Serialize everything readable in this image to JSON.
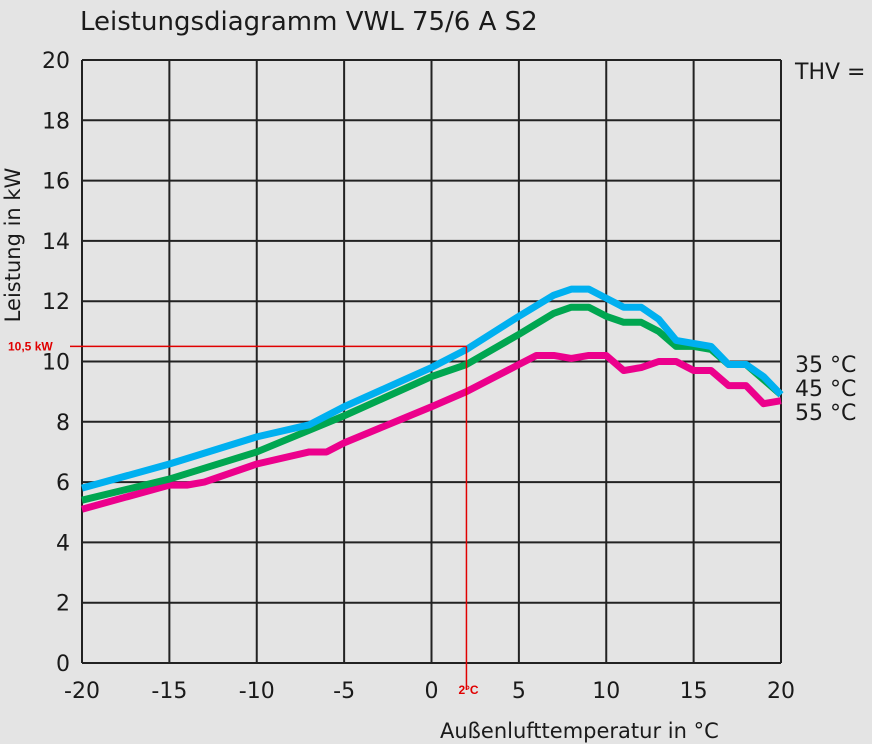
{
  "chart_data": {
    "type": "line",
    "title": "Leistungsdiagramm VWL 75/6 A S2",
    "xlabel": "Außenlufttemperatur  in °C",
    "ylabel": "Leistung in kW",
    "xlim": [
      -20,
      20
    ],
    "ylim": [
      0,
      20
    ],
    "xticks": [
      -20,
      -15,
      -10,
      -5,
      0,
      5,
      10,
      15,
      20
    ],
    "yticks": [
      0,
      2,
      4,
      6,
      8,
      10,
      12,
      14,
      16,
      18,
      20
    ],
    "grid": true,
    "legend_title": "THV =",
    "legend_placement": "right",
    "series": [
      {
        "name": "35 °C",
        "color": "#00b0f0",
        "x": [
          -20,
          -15,
          -10,
          -7,
          -5,
          0,
          2,
          5,
          7,
          8,
          9,
          10,
          11,
          12,
          13,
          14,
          15,
          16,
          17,
          18,
          19,
          20
        ],
        "y": [
          5.8,
          6.6,
          7.5,
          7.9,
          8.5,
          9.8,
          10.4,
          11.5,
          12.2,
          12.4,
          12.4,
          12.1,
          11.8,
          11.8,
          11.4,
          10.7,
          10.6,
          10.5,
          9.9,
          9.9,
          9.5,
          8.9
        ]
      },
      {
        "name": "45 °C",
        "color": "#00a650",
        "x": [
          -20,
          -15,
          -10,
          -5,
          0,
          2,
          5,
          7,
          8,
          9,
          10,
          11,
          12,
          13,
          14,
          15,
          16,
          17,
          18,
          19,
          20
        ],
        "y": [
          5.4,
          6.1,
          7.0,
          8.2,
          9.5,
          9.9,
          10.9,
          11.6,
          11.8,
          11.8,
          11.5,
          11.3,
          11.3,
          11.0,
          10.5,
          10.5,
          10.4,
          9.9,
          9.9,
          9.4,
          8.9
        ]
      },
      {
        "name": "55 °C",
        "color": "#ec008c",
        "x": [
          -20,
          -15,
          -14,
          -13,
          -10,
          -7,
          -6,
          -5,
          0,
          2,
          5,
          6,
          7,
          8,
          9,
          10,
          11,
          12,
          13,
          14,
          15,
          16,
          17,
          18,
          19,
          20
        ],
        "y": [
          5.1,
          5.9,
          5.9,
          6.0,
          6.6,
          7.0,
          7.0,
          7.3,
          8.5,
          9.0,
          9.9,
          10.2,
          10.2,
          10.1,
          10.2,
          10.2,
          9.7,
          9.8,
          10.0,
          10.0,
          9.7,
          9.7,
          9.2,
          9.2,
          8.6,
          8.7
        ]
      }
    ],
    "annotation": {
      "x": 2,
      "y": 10.5,
      "x_label": "2°C",
      "y_label": "10,5 kW",
      "color": "#e00000"
    }
  }
}
